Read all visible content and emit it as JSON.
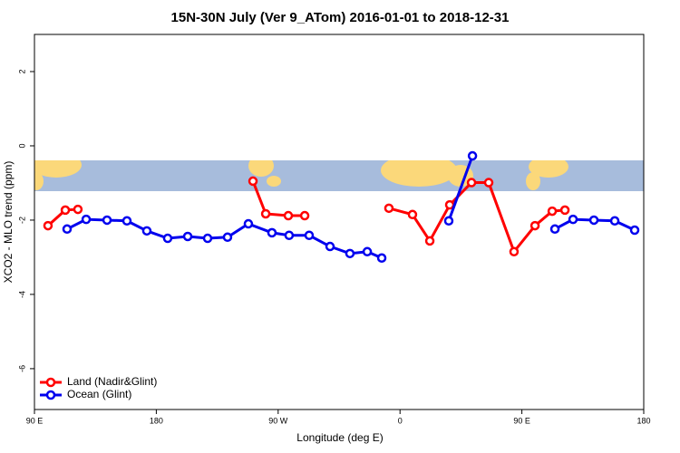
{
  "chart_data": {
    "type": "line",
    "title": "15N-30N July (Ver 9_ATom)   2016-01-01 to 2018-12-31",
    "x_label": "Longitude (deg E)",
    "y_label": "XCO2 - MLO trend (ppm)",
    "xlim": [
      90,
      540
    ],
    "ylim": [
      -7.1,
      3.0
    ],
    "xticks": [
      {
        "value": 90,
        "label": "90 E"
      },
      {
        "value": 180,
        "label": "180"
      },
      {
        "value": 270,
        "label": "90 W"
      },
      {
        "value": 360,
        "label": "0"
      },
      {
        "value": 450,
        "label": "90 E"
      },
      {
        "value": 540,
        "label": "180"
      }
    ],
    "yticks": [
      -6,
      -4,
      -2,
      0,
      2
    ],
    "grid": false,
    "legend": "bottom-left",
    "series": [
      {
        "name": "Land (Nadir&Glint)",
        "color": "#ff0000",
        "x": [
          100.0,
          112.8,
          122.1,
          null,
          251.4,
          260.8,
          277.5,
          289.6,
          null,
          351.8,
          369.2,
          382.0,
          396.7,
          412.8,
          425.5,
          444.2,
          459.7,
          472.4,
          481.8
        ],
        "values": [
          -2.15,
          -1.73,
          -1.71,
          null,
          -0.95,
          -1.83,
          -1.88,
          -1.88,
          null,
          -1.68,
          -1.85,
          -2.56,
          -1.59,
          -0.99,
          -0.99,
          -2.85,
          -2.15,
          -1.76,
          -1.73
        ]
      },
      {
        "name": "Ocean (Glint)",
        "color": "#0000ee",
        "x": [
          114.1,
          128.2,
          143.6,
          158.3,
          173.0,
          188.4,
          203.2,
          217.9,
          232.6,
          248.0,
          265.4,
          278.1,
          292.9,
          308.3,
          323.0,
          335.8,
          346.5,
          null,
          396.0,
          413.5,
          null,
          474.4,
          487.8,
          503.2,
          518.6,
          533.3
        ],
        "values": [
          -2.24,
          -1.98,
          -2.0,
          -2.02,
          -2.29,
          -2.49,
          -2.44,
          -2.49,
          -2.46,
          -2.1,
          -2.34,
          -2.41,
          -2.41,
          -2.71,
          -2.9,
          -2.85,
          -3.02,
          null,
          -2.02,
          -0.27,
          null,
          -2.24,
          -1.98,
          -2.0,
          -2.02,
          -2.27
        ]
      }
    ]
  }
}
